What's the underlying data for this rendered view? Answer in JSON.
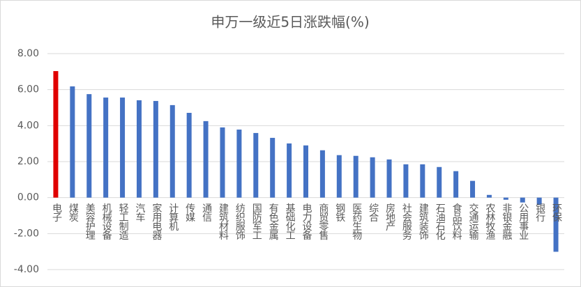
{
  "chart_data": {
    "type": "bar",
    "title": "申万一级近5日涨跌幅(%)",
    "categories": [
      "电子",
      "煤炭",
      "美容护理",
      "机械设备",
      "轻工制造",
      "汽车",
      "家用电器",
      "计算机",
      "传媒",
      "通信",
      "建筑材料",
      "纺织服饰",
      "国防军工",
      "有色金属",
      "基础化工",
      "电力设备",
      "商贸零售",
      "钢铁",
      "医药生物",
      "综合",
      "房地产",
      "社会服务",
      "建筑装饰",
      "石油石化",
      "食品饮料",
      "交通运输",
      "农林牧渔",
      "非银金融",
      "公用事业",
      "银行",
      "环保"
    ],
    "values": [
      7.03,
      6.18,
      5.75,
      5.56,
      5.56,
      5.41,
      5.37,
      5.14,
      4.71,
      4.25,
      3.9,
      3.78,
      3.59,
      3.32,
      3.01,
      2.9,
      2.63,
      2.36,
      2.32,
      2.24,
      2.12,
      1.85,
      1.85,
      1.7,
      1.47,
      0.93,
      0.15,
      -0.12,
      -0.27,
      -0.39,
      -3.01
    ],
    "colors": [
      "#e00000",
      "#4472c4",
      "#4472c4",
      "#4472c4",
      "#4472c4",
      "#4472c4",
      "#4472c4",
      "#4472c4",
      "#4472c4",
      "#4472c4",
      "#4472c4",
      "#4472c4",
      "#4472c4",
      "#4472c4",
      "#4472c4",
      "#4472c4",
      "#4472c4",
      "#4472c4",
      "#4472c4",
      "#4472c4",
      "#4472c4",
      "#4472c4",
      "#4472c4",
      "#4472c4",
      "#4472c4",
      "#4472c4",
      "#4472c4",
      "#4472c4",
      "#4472c4",
      "#4472c4",
      "#4472c4"
    ],
    "ylim": [
      -4,
      8
    ],
    "yticks": [
      {
        "value": -4,
        "label": "-4.00"
      },
      {
        "value": -2,
        "label": "-2.00"
      },
      {
        "value": 0,
        "label": "0.00"
      },
      {
        "value": 2,
        "label": "2.00"
      },
      {
        "value": 4,
        "label": "4.00"
      },
      {
        "value": 6,
        "label": "6.00"
      },
      {
        "value": 8,
        "label": "8.00"
      }
    ],
    "grid": true
  }
}
